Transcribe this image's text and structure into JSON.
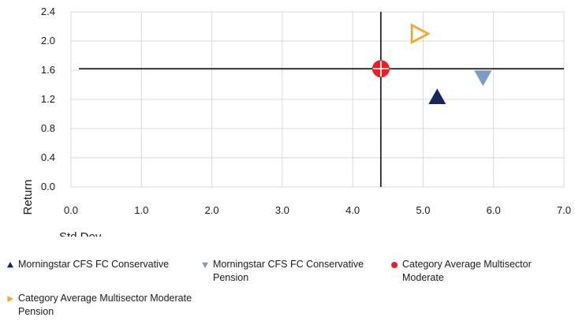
{
  "chart_data": {
    "type": "scatter",
    "title": "",
    "xlabel": "Std Dev",
    "ylabel": "Return",
    "xlim": [
      0.0,
      7.0
    ],
    "ylim": [
      0.0,
      2.4
    ],
    "xticks": [
      "0.0",
      "1.0",
      "2.0",
      "3.0",
      "4.0",
      "5.0",
      "6.0",
      "7.0"
    ],
    "yticks": [
      "0.0",
      "0.4",
      "0.8",
      "1.2",
      "1.6",
      "2.0",
      "2.4"
    ],
    "grid": true,
    "reference_lines": {
      "x": 4.4,
      "y": 1.62
    },
    "legend_position": "bottom",
    "series": [
      {
        "name": "Morningstar CFS FC Conservative",
        "x": 5.2,
        "y": 1.23,
        "marker": "triangle-up",
        "color": "#17275a"
      },
      {
        "name": "Morningstar CFS FC  Conservative Pension",
        "x": 5.85,
        "y": 1.5,
        "marker": "triangle-down",
        "color": "#7f9ac4"
      },
      {
        "name": "Category Average Multisector Moderate",
        "x": 4.4,
        "y": 1.62,
        "marker": "circle-cross",
        "color": "#ee1c23"
      },
      {
        "name": "Category Average Multisector Moderate Pension",
        "x": 4.95,
        "y": 2.1,
        "marker": "triangle-right-open",
        "color": "#f5a733"
      }
    ]
  }
}
